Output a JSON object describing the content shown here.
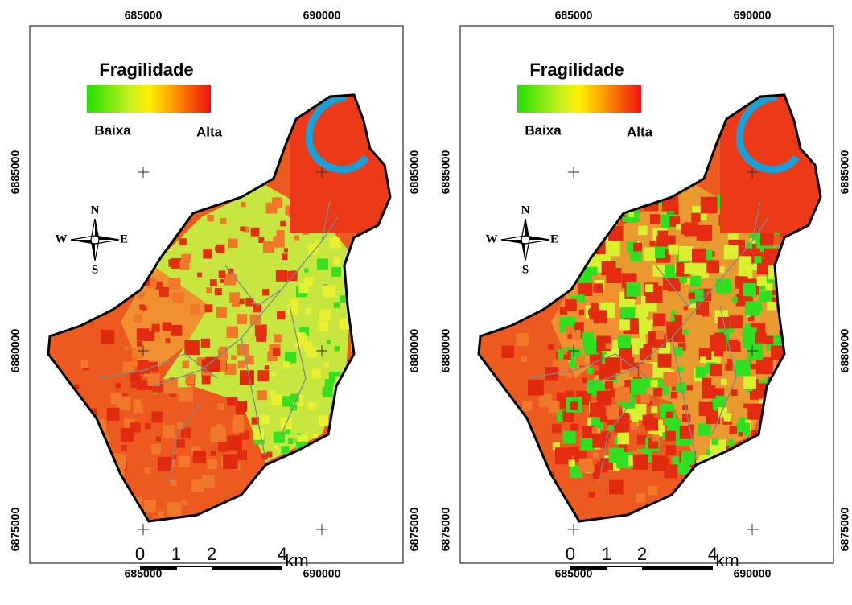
{
  "panels": [
    {
      "x_ticks": [
        "685000",
        "690000"
      ],
      "y_ticks": [
        "6885000",
        "6880000",
        "6875000"
      ],
      "legend": {
        "title": "Fragilidade",
        "low": "Baixa",
        "high": "Alta"
      },
      "compass": {
        "n": "N",
        "s": "S",
        "e": "E",
        "w": "W"
      },
      "scale": {
        "ticks": [
          "0",
          "1",
          "2",
          "4"
        ],
        "unit": "km"
      }
    },
    {
      "x_ticks": [
        "685000",
        "690000"
      ],
      "y_ticks": [
        "6885000",
        "6880000",
        "6875000"
      ],
      "legend": {
        "title": "Fragilidade",
        "low": "Baixa",
        "high": "Alta"
      },
      "compass": {
        "n": "N",
        "s": "S",
        "e": "E",
        "w": "W"
      },
      "scale": {
        "ticks": [
          "0",
          "1",
          "2",
          "4"
        ],
        "unit": "km"
      }
    }
  ]
}
